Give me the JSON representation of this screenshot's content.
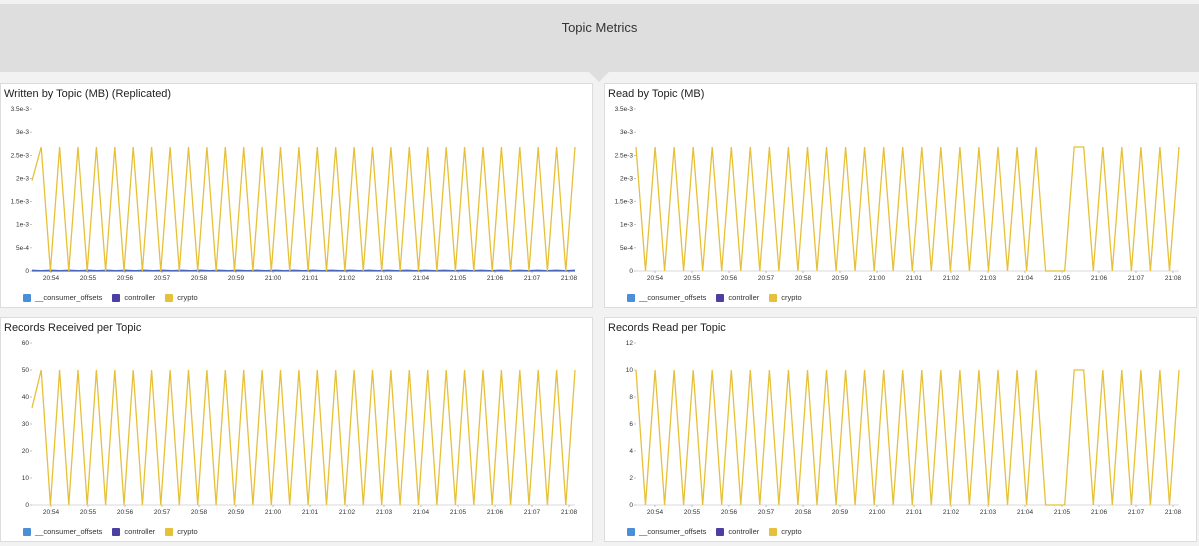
{
  "header": {
    "title": "Topic Metrics"
  },
  "series_colors": {
    "__consumer_offsets": "#4a90d9",
    "controller": "#4b3fa3",
    "crypto": "#e6c039"
  },
  "chart_data": [
    {
      "type": "line",
      "title": "Written by Topic (MB) (Replicated)",
      "x_tick_labels": [
        "20:54",
        "20:55",
        "20:56",
        "20:57",
        "20:58",
        "20:59",
        "21:00",
        "21:01",
        "21:02",
        "21:03",
        "21:04",
        "21:05",
        "21:06",
        "21:07",
        "21:08"
      ],
      "y_tick_labels": [
        "0",
        "5e-4",
        "1e-3",
        "1.5e-3",
        "2e-3",
        "2.5e-3",
        "3e-3",
        "3.5e-3"
      ],
      "ylim": [
        0,
        0.0035
      ],
      "legend": [
        "__consumer_offsets",
        "controller",
        "crypto"
      ],
      "series": [
        {
          "name": "__consumer_offsets",
          "values": [
            2e-05,
            1e-05,
            2e-05,
            1e-05,
            2e-05,
            1e-05,
            2e-05,
            1e-05,
            2e-05,
            1e-05,
            2e-05,
            1e-05,
            2e-05,
            1e-05,
            2e-05,
            1e-05,
            2e-05,
            1e-05,
            2e-05,
            1e-05,
            2e-05,
            1e-05,
            2e-05,
            1e-05,
            2e-05,
            1e-05,
            2e-05,
            1e-05,
            2e-05,
            1e-05,
            2e-05,
            1e-05,
            2e-05,
            1e-05,
            2e-05,
            1e-05,
            2e-05,
            1e-05,
            2e-05,
            1e-05,
            2e-05,
            1e-05,
            2e-05,
            1e-05,
            2e-05,
            1e-05,
            2e-05,
            1e-05,
            2e-05,
            1e-05,
            2e-05,
            1e-05,
            2e-05,
            1e-05,
            2e-05,
            1e-05,
            2e-05,
            1e-05,
            2e-05
          ]
        },
        {
          "name": "controller",
          "values": [
            0,
            0,
            0,
            0,
            0,
            0,
            0,
            0,
            0,
            0,
            0,
            0,
            0,
            0,
            0,
            0,
            0,
            0,
            0,
            0,
            0,
            0,
            0,
            0,
            0,
            0,
            0,
            0,
            0,
            0,
            0,
            0,
            0,
            0,
            0,
            0,
            0,
            0,
            0,
            0,
            0,
            0,
            0,
            0,
            0,
            0,
            0,
            0,
            0,
            0,
            0,
            0,
            0,
            0,
            0,
            0,
            0,
            0,
            0
          ]
        },
        {
          "name": "crypto",
          "values": [
            0.00195,
            0.00268,
            0,
            0.00268,
            0,
            0.00268,
            0,
            0.00268,
            0,
            0.00268,
            0,
            0.00268,
            0,
            0.00268,
            0,
            0.00268,
            0,
            0.00268,
            0,
            0.00268,
            0,
            0.00268,
            0,
            0.00268,
            0,
            0.00268,
            0,
            0.00268,
            0,
            0.00268,
            0,
            0.00268,
            0,
            0.00268,
            0,
            0.00268,
            0,
            0.00268,
            0,
            0.00268,
            0,
            0.00268,
            0,
            0.00268,
            0,
            0.00268,
            0,
            0.00268,
            0,
            0.00268,
            0,
            0.00268,
            0,
            0.00268,
            0,
            0.00268,
            0,
            0.00268,
            0,
            0.00268
          ]
        }
      ]
    },
    {
      "type": "line",
      "title": "Read by Topic (MB)",
      "x_tick_labels": [
        "20:54",
        "20:55",
        "20:56",
        "20:57",
        "20:58",
        "20:59",
        "21:00",
        "21:01",
        "21:02",
        "21:03",
        "21:04",
        "21:05",
        "21:06",
        "21:07",
        "21:08"
      ],
      "y_tick_labels": [
        "0",
        "5e-4",
        "1e-3",
        "1.5e-3",
        "2e-3",
        "2.5e-3",
        "3e-3",
        "3.5e-3"
      ],
      "ylim": [
        0,
        0.0035
      ],
      "legend": [
        "__consumer_offsets",
        "controller",
        "crypto"
      ],
      "series": [
        {
          "name": "crypto",
          "values": [
            0.00268,
            0,
            0.00268,
            0,
            0.00268,
            0,
            0.00268,
            0,
            0.00268,
            0,
            0.00268,
            0,
            0.00268,
            0,
            0.00268,
            0,
            0.00268,
            0,
            0.00268,
            0,
            0.00268,
            0,
            0.00268,
            0,
            0.00268,
            0,
            0.00268,
            0,
            0.00268,
            0,
            0.00268,
            0,
            0.00268,
            0,
            0.00268,
            0,
            0.00268,
            0,
            0.00268,
            0,
            0.00268,
            0,
            0.00268,
            0,
            0,
            0,
            0.00268,
            0.00268,
            0,
            0.00268,
            0,
            0.00268,
            0,
            0.00268,
            0,
            0.00268,
            0,
            0.00268
          ]
        }
      ]
    },
    {
      "type": "line",
      "title": "Records Received per Topic",
      "x_tick_labels": [
        "20:54",
        "20:55",
        "20:56",
        "20:57",
        "20:58",
        "20:59",
        "21:00",
        "21:01",
        "21:02",
        "21:03",
        "21:04",
        "21:05",
        "21:06",
        "21:07",
        "21:08"
      ],
      "y_tick_labels": [
        "0",
        "10",
        "20",
        "30",
        "40",
        "50",
        "60"
      ],
      "ylim": [
        0,
        60
      ],
      "legend": [
        "__consumer_offsets",
        "controller",
        "crypto"
      ],
      "series": [
        {
          "name": "crypto",
          "values": [
            36,
            50,
            0,
            50,
            0,
            50,
            0,
            50,
            0,
            50,
            0,
            50,
            0,
            50,
            0,
            50,
            0,
            50,
            0,
            50,
            0,
            50,
            0,
            50,
            0,
            50,
            0,
            50,
            0,
            50,
            0,
            50,
            0,
            50,
            0,
            50,
            0,
            50,
            0,
            50,
            0,
            50,
            0,
            50,
            0,
            50,
            0,
            50,
            0,
            50,
            0,
            50,
            0,
            50,
            0,
            50,
            0,
            50,
            0,
            50
          ]
        }
      ]
    },
    {
      "type": "line",
      "title": "Records Read per Topic",
      "x_tick_labels": [
        "20:54",
        "20:55",
        "20:56",
        "20:57",
        "20:58",
        "20:59",
        "21:00",
        "21:01",
        "21:02",
        "21:03",
        "21:04",
        "21:05",
        "21:06",
        "21:07",
        "21:08"
      ],
      "y_tick_labels": [
        "0",
        "2",
        "4",
        "6",
        "8",
        "10",
        "12"
      ],
      "ylim": [
        0,
        12
      ],
      "legend": [
        "__consumer_offsets",
        "controller",
        "crypto"
      ],
      "series": [
        {
          "name": "crypto",
          "values": [
            10,
            0,
            10,
            0,
            10,
            0,
            10,
            0,
            10,
            0,
            10,
            0,
            10,
            0,
            10,
            0,
            10,
            0,
            10,
            0,
            10,
            0,
            10,
            0,
            10,
            0,
            10,
            0,
            10,
            0,
            10,
            0,
            10,
            0,
            10,
            0,
            10,
            0,
            10,
            0,
            10,
            0,
            10,
            0,
            0,
            0,
            10,
            10,
            0,
            10,
            0,
            10,
            0,
            10,
            0,
            10,
            0,
            10
          ]
        }
      ]
    }
  ]
}
